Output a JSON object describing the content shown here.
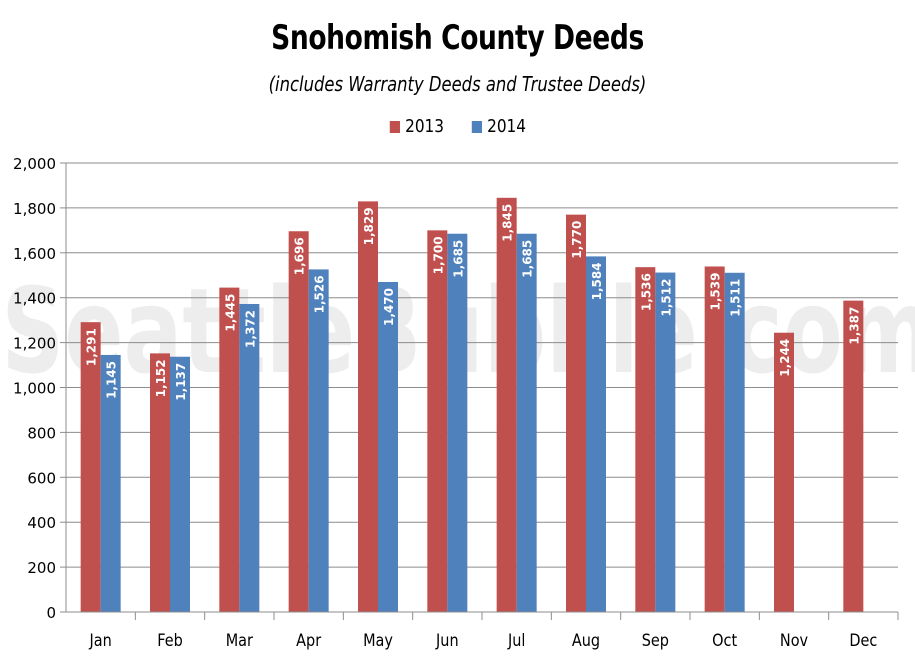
{
  "chart_data": {
    "type": "bar",
    "title": "Snohomish County Deeds",
    "subtitle": "(includes Warranty Deeds and Trustee Deeds)",
    "categories": [
      "Jan",
      "Feb",
      "Mar",
      "Apr",
      "May",
      "Jun",
      "Jul",
      "Aug",
      "Sep",
      "Oct",
      "Nov",
      "Dec"
    ],
    "series": [
      {
        "name": "2013",
        "color": "#c0504d",
        "values": [
          1291,
          1152,
          1445,
          1696,
          1829,
          1700,
          1845,
          1770,
          1536,
          1539,
          1244,
          1387
        ],
        "labels": [
          "1,291",
          "1,152",
          "1,445",
          "1,696",
          "1,829",
          "1,700",
          "1,845",
          "1,770",
          "1,536",
          "1,539",
          "1,244",
          "1,387"
        ]
      },
      {
        "name": "2014",
        "color": "#4f81bd",
        "values": [
          1145,
          1137,
          1372,
          1526,
          1470,
          1685,
          1685,
          1584,
          1512,
          1511,
          null,
          null
        ],
        "labels": [
          "1,145",
          "1,137",
          "1,372",
          "1,526",
          "1,470",
          "1,685",
          "1,685",
          "1,584",
          "1,512",
          "1,511",
          "",
          ""
        ]
      }
    ],
    "ylim": [
      0,
      2000
    ],
    "yticks": [
      "0",
      "200",
      "400",
      "600",
      "800",
      "1,000",
      "1,200",
      "1,400",
      "1,600",
      "1,800",
      "2,000"
    ],
    "ytick_values": [
      0,
      200,
      400,
      600,
      800,
      1000,
      1200,
      1400,
      1600,
      1800,
      2000
    ],
    "grid": true,
    "legend_position": "top-center",
    "watermark": "SeattleBubble.com"
  }
}
